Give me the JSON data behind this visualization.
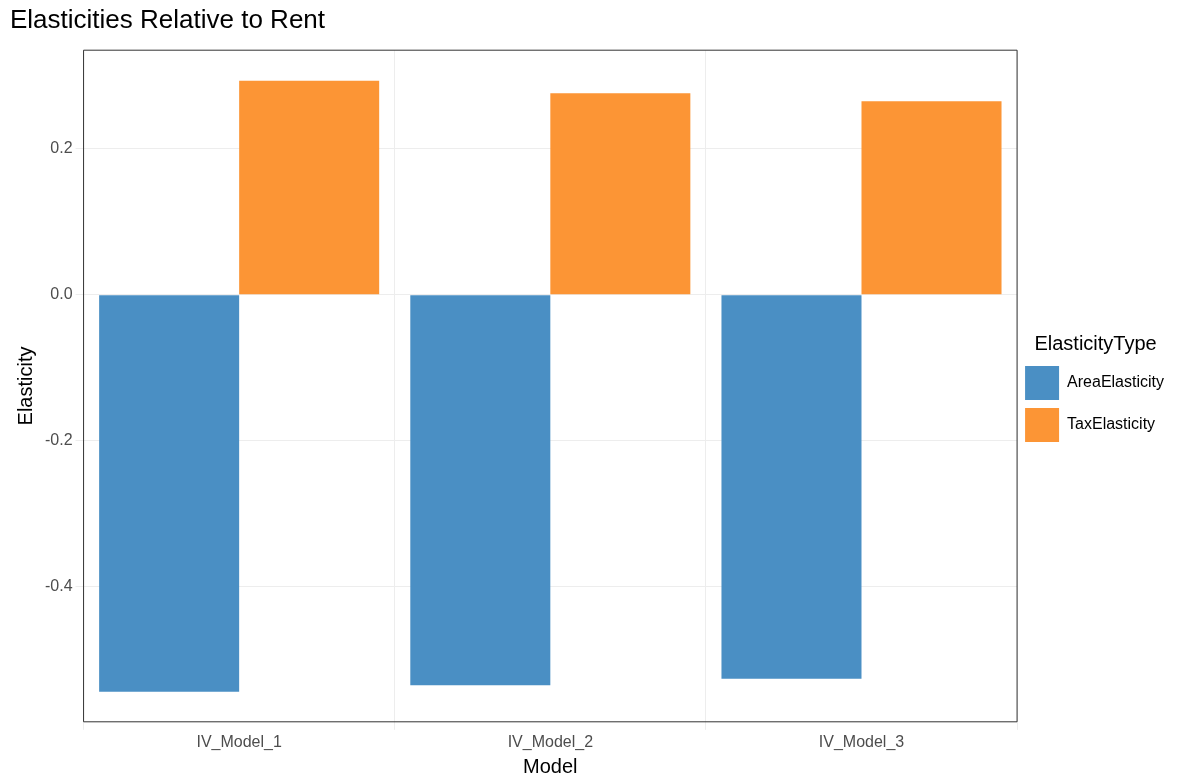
{
  "chart_data": {
    "type": "bar",
    "title": "Elasticities Relative to Rent",
    "xlabel": "Model",
    "ylabel": "Elasticity",
    "legend_title": "ElasticityType",
    "categories": [
      "IV_Model_1",
      "IV_Model_2",
      "IV_Model_3"
    ],
    "series": [
      {
        "name": "AreaElasticity",
        "color": "#4a8fc4",
        "values": [
          -0.544,
          -0.535,
          -0.526
        ]
      },
      {
        "name": "TaxElasticity",
        "color": "#fc9535",
        "values": [
          0.293,
          0.276,
          0.265
        ]
      }
    ],
    "ylim": [
      -0.585,
      0.335
    ],
    "yticks": [
      {
        "value": -0.4,
        "label": "-0.4"
      },
      {
        "value": -0.2,
        "label": "-0.2"
      },
      {
        "value": 0,
        "label": "0.0"
      },
      0.2
    ],
    "grid": true,
    "legend": "right"
  }
}
